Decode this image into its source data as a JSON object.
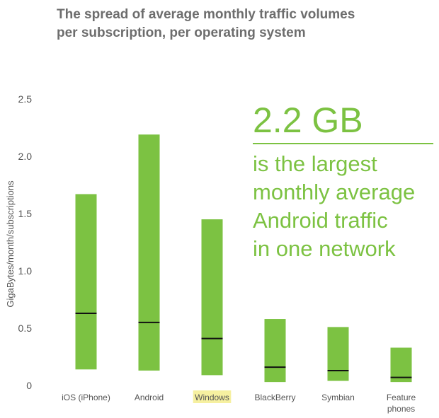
{
  "title": {
    "line1": "The spread of average monthly traffic volumes",
    "line2": "per subscription, per operating system"
  },
  "callout": {
    "headline": "2.2 GB",
    "lines": [
      "is the largest",
      "monthly average",
      "Android traffic",
      "in one network"
    ]
  },
  "colors": {
    "bar": "#7cc242",
    "median": "#111111",
    "highlight": "#f6f0a0",
    "title": "#6d6d6d",
    "text": "#555555"
  },
  "chart_data": {
    "type": "bar",
    "subtype": "floating-range-with-median",
    "ylabel": "GigaBytes/month/subscriptions",
    "xlabel": "",
    "ylim": [
      0,
      2.5
    ],
    "yticks": [
      "0",
      "0.5",
      "1.0",
      "1.5",
      "2.0",
      "2.5"
    ],
    "grid": false,
    "categories": [
      "iOS (iPhone)",
      "Android",
      "Windows",
      "BlackBerry",
      "Symbian",
      "Feature phones"
    ],
    "highlighted_category": "Windows",
    "low": [
      0.14,
      0.13,
      0.09,
      0.03,
      0.04,
      0.03
    ],
    "high": [
      1.67,
      2.19,
      1.45,
      0.58,
      0.51,
      0.33
    ],
    "median": [
      0.63,
      0.55,
      0.41,
      0.16,
      0.13,
      0.07
    ]
  }
}
